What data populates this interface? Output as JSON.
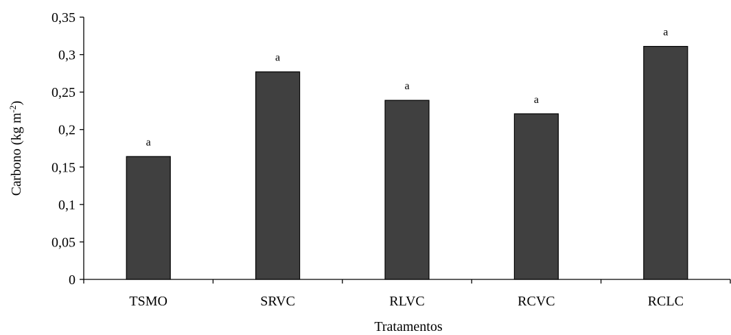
{
  "chart_data": {
    "type": "bar",
    "categories": [
      "TSMO",
      "SRVC",
      "RLVC",
      "RCVC",
      "RCLC"
    ],
    "values": [
      0.164,
      0.277,
      0.239,
      0.221,
      0.311
    ],
    "data_labels": [
      "a",
      "a",
      "a",
      "a",
      "a"
    ],
    "xlabel": "Tratamentos",
    "ylabel_main": "Carbono (kg  m",
    "ylabel_sup": "-2",
    "ylabel_end": ")",
    "ylim": [
      0,
      0.35
    ],
    "yticks": [
      0,
      0.05,
      0.1,
      0.15,
      0.2,
      0.25,
      0.3,
      0.35
    ],
    "ytick_labels": [
      "0",
      "0,05",
      "0,1",
      "0,15",
      "0,2",
      "0,25",
      "0,3",
      "0,35"
    ],
    "grid": false,
    "legend": "none",
    "bar_color": "#404040"
  }
}
